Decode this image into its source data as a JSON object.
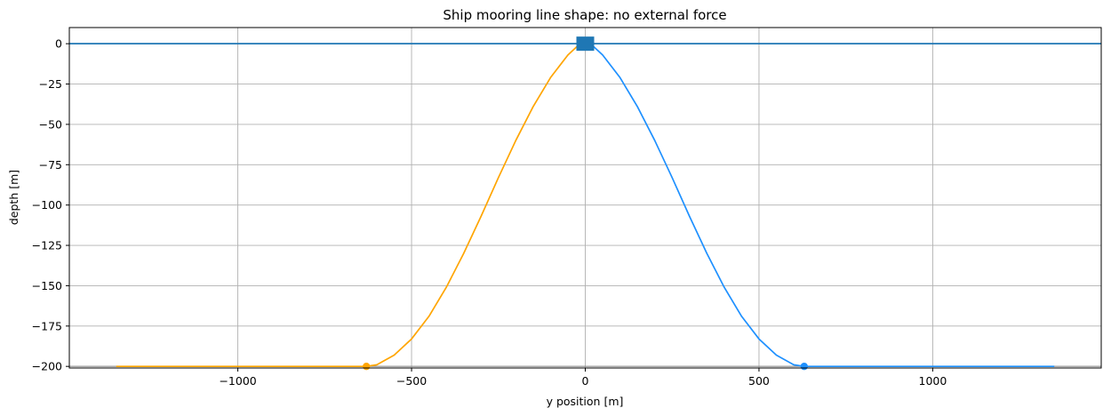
{
  "chart_data": {
    "type": "line",
    "title": "Ship mooring line shape: no external force",
    "xlabel": "y position [m]",
    "ylabel": "depth [m]",
    "xlim": [
      -1485,
      1485
    ],
    "ylim": [
      -201,
      10
    ],
    "xticks": [
      -1000,
      -500,
      0,
      500,
      1000
    ],
    "yticks": [
      0,
      -25,
      -50,
      -75,
      -100,
      -125,
      -150,
      -175,
      -200
    ],
    "xtick_labels": [
      "−1000",
      "−500",
      "0",
      "500",
      "1000"
    ],
    "ytick_labels": [
      "0",
      "−25",
      "−50",
      "−75",
      "−100",
      "−125",
      "−150",
      "−175",
      "−200"
    ],
    "grid": true,
    "sea_surface_y": 0,
    "sea_surface_color": "#1f77b4",
    "seabed_y": -200,
    "seabed_color": "#888888",
    "ship": {
      "x": 0,
      "y": 0,
      "marker": "square",
      "color": "#1f77b4"
    },
    "series": [
      {
        "color": "#ffa500",
        "x": [
          -1350,
          -630,
          -600,
          -550,
          -500,
          -450,
          -400,
          -350,
          -300,
          -250,
          -200,
          -150,
          -100,
          -50,
          -15
        ],
        "y": [
          -200,
          -200,
          -199,
          -193,
          -183,
          -169,
          -151,
          -130,
          -107,
          -83,
          -60,
          -39,
          -21,
          -7,
          0
        ],
        "anchor": {
          "x": -630,
          "y": -200
        }
      },
      {
        "color": "#1e90ff",
        "x": [
          15,
          50,
          100,
          150,
          200,
          250,
          300,
          350,
          400,
          450,
          500,
          550,
          600,
          630,
          1350
        ],
        "y": [
          0,
          -7,
          -21,
          -39,
          -60,
          -83,
          -107,
          -130,
          -151,
          -169,
          -183,
          -193,
          -199,
          -200,
          -200
        ],
        "anchor": {
          "x": 630,
          "y": -200
        }
      }
    ]
  }
}
